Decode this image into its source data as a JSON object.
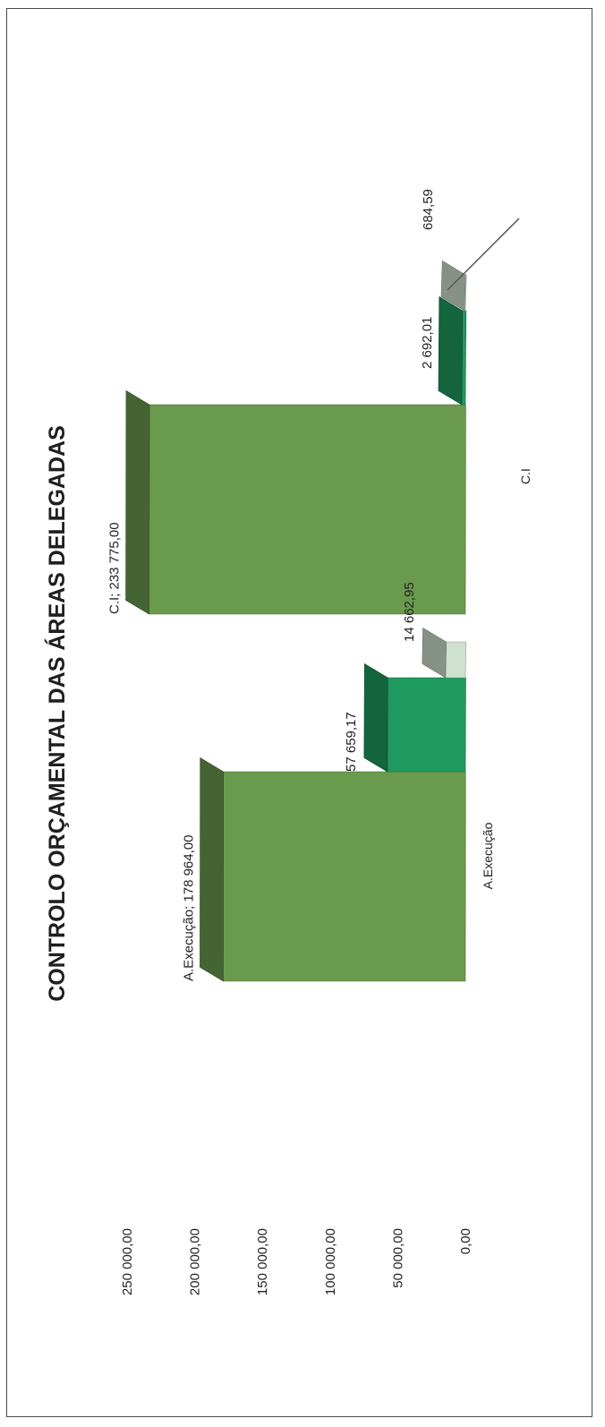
{
  "chart_data": {
    "type": "bar",
    "title": "CONTROLO ORÇAMENTAL DAS ÁREAS DELEGADAS",
    "categories": [
      "A.Execução",
      "C.I"
    ],
    "yticks": [
      "0,00",
      "50 000,00",
      "100 000,00",
      "150 000,00",
      "200 000,00",
      "250 000,00"
    ],
    "ylim": [
      0,
      250000
    ],
    "series": [
      {
        "values": [
          178964.0,
          233775.0
        ],
        "labels": [
          "A.Execução; 178 964,00",
          "C.I; 233 775,00"
        ],
        "color": "#6a9a4e"
      },
      {
        "values": [
          57659.17,
          2692.01
        ],
        "labels": [
          "57 659,17",
          "2 692,01"
        ],
        "color": "#1e9a5e"
      },
      {
        "values": [
          14662.95,
          684.59
        ],
        "labels": [
          "14 662,95",
          "684,59"
        ],
        "color": "#cfe1cf"
      }
    ],
    "grid": false,
    "legend": "none"
  }
}
